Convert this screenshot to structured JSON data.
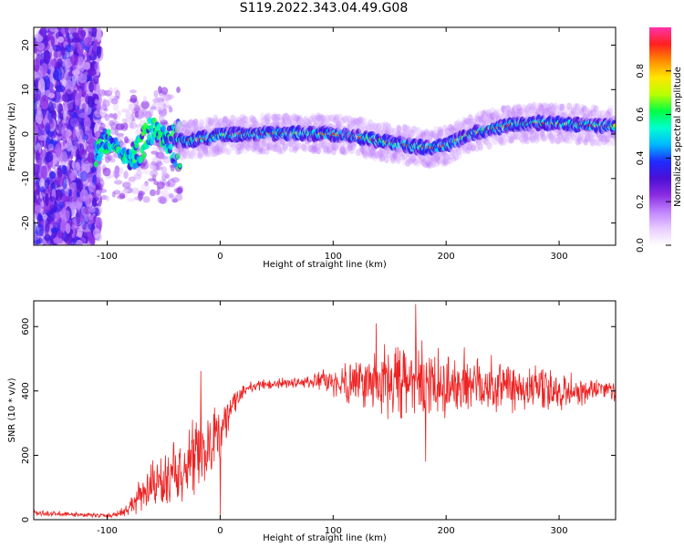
{
  "title": "S119.2022.343.04.49.G08",
  "colors": {
    "snr_line": "#ee2222",
    "colormap": [
      "#ffffff",
      "#e8ccff",
      "#c084ff",
      "#8a2be2",
      "#4b0fd6",
      "#1e2bff",
      "#00b8ff",
      "#00ffd0",
      "#00ff44",
      "#b8ff00",
      "#ffe600",
      "#ff8c00",
      "#ff2020",
      "#ff33aa"
    ]
  },
  "chart_data": [
    {
      "type": "heatmap",
      "xlabel": "Height of straight line (km)",
      "ylabel": "Frequency (Hz)",
      "xlim": [
        -165,
        350
      ],
      "ylim": [
        -25,
        24
      ],
      "xticks": [
        -100,
        0,
        100,
        200,
        300
      ],
      "yticks": [
        -20,
        -10,
        0,
        10,
        20
      ],
      "colorbar": {
        "label": "Normalized spectral amplitude",
        "range": [
          0,
          1
        ],
        "ticks": [
          "0.0",
          "0.2",
          "0.4",
          "0.6",
          "0.8"
        ]
      },
      "ridge_frequency": {
        "x": [
          -40,
          -30,
          -20,
          -10,
          0,
          20,
          40,
          60,
          80,
          100,
          120,
          140,
          160,
          170,
          180,
          190,
          200,
          210,
          220,
          240,
          260,
          280,
          300,
          320,
          340,
          350
        ],
        "y": [
          -1.5,
          -1.5,
          -1.2,
          -0.8,
          -0.3,
          0.0,
          0.1,
          0.2,
          0.1,
          0.0,
          -0.6,
          -1.5,
          -2.3,
          -2.8,
          -3.0,
          -3.0,
          -2.5,
          -1.4,
          0.0,
          1.2,
          2.2,
          2.5,
          2.4,
          2.1,
          1.8,
          1.7
        ]
      }
    },
    {
      "type": "line",
      "xlabel": "Height of straight line (km)",
      "ylabel": "SNR (10 * v/v)",
      "xlim": [
        -165,
        350
      ],
      "ylim": [
        0,
        680
      ],
      "xticks": [
        -100,
        0,
        100,
        200,
        300
      ],
      "yticks": [
        0,
        200,
        400,
        600
      ],
      "series": [
        {
          "x": [
            -165,
            -140,
            -120,
            -100,
            -90,
            -80,
            -75,
            -70,
            -60,
            -50,
            -40,
            -30,
            -20,
            -10,
            0,
            5,
            10,
            20,
            30,
            40,
            60,
            80,
            90,
            100,
            120,
            140,
            160,
            180,
            200,
            220,
            240,
            260,
            280,
            300,
            320,
            340,
            350
          ],
          "values": [
            20,
            18,
            15,
            12,
            18,
            35,
            55,
            75,
            100,
            120,
            140,
            160,
            185,
            210,
            270,
            310,
            350,
            400,
            415,
            420,
            425,
            428,
            430,
            425,
            430,
            430,
            425,
            420,
            410,
            430,
            420,
            415,
            405,
            400,
            400,
            405,
            400
          ],
          "noise_amplitude": [
            8,
            8,
            6,
            6,
            10,
            20,
            40,
            60,
            70,
            80,
            90,
            100,
            120,
            120,
            80,
            60,
            40,
            20,
            15,
            15,
            15,
            20,
            30,
            40,
            70,
            100,
            120,
            110,
            100,
            95,
            90,
            80,
            65,
            60,
            45,
            35,
            30
          ],
          "peaks": [
            {
              "x": 173,
              "y": 670
            },
            {
              "x": 138,
              "y": 610
            },
            {
              "x": -17,
              "y": 462
            },
            {
              "x": 182,
              "y": 180
            },
            {
              "x": 0,
              "y": 10
            }
          ]
        }
      ]
    }
  ]
}
